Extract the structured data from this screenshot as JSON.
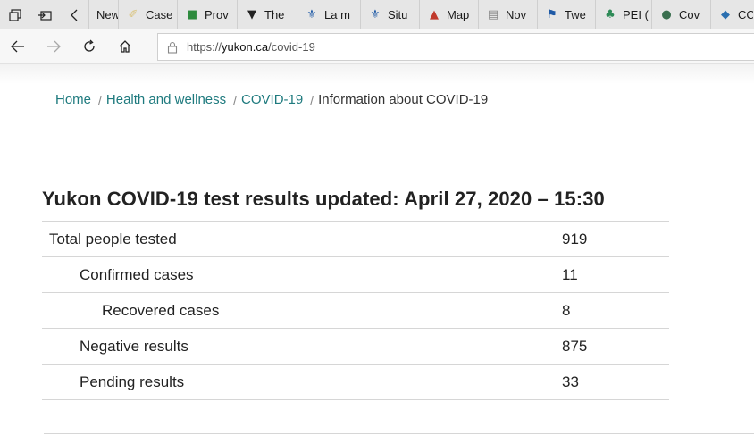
{
  "browser": {
    "tabs": [
      {
        "title": "New",
        "icon": "blank-page-icon",
        "color": "#ffffff"
      },
      {
        "title": "Case",
        "icon": "document-icon",
        "color": "#d9c27a"
      },
      {
        "title": "Prov",
        "icon": "green-logo-icon",
        "color": "#2e8b3e"
      },
      {
        "title": "The",
        "icon": "shield-icon",
        "color": "#222222"
      },
      {
        "title": "La m",
        "icon": "fleur-de-lis-icon",
        "color": "#1f5aa6"
      },
      {
        "title": "Situ",
        "icon": "fleur-de-lis-icon",
        "color": "#1f5aa6"
      },
      {
        "title": "Map",
        "icon": "sail-icon",
        "color": "#c0392b"
      },
      {
        "title": "Nov",
        "icon": "newspaper-icon",
        "color": "#888888"
      },
      {
        "title": "Twe",
        "icon": "flag-icon",
        "color": "#1f5aa6"
      },
      {
        "title": "PEI (",
        "icon": "trees-icon",
        "color": "#2e8b57"
      },
      {
        "title": "Cov",
        "icon": "globe-icon",
        "color": "#3a6f4f"
      },
      {
        "title": "CC",
        "icon": "crest-icon",
        "color": "#2a6fb0"
      }
    ],
    "url_prefix": "https://",
    "url_host": "yukon.ca",
    "url_path": "/covid-19"
  },
  "breadcrumb": {
    "items": [
      "Home",
      "Health and wellness",
      "COVID-19"
    ],
    "current": "Information about COVID-19"
  },
  "heading": "Yukon COVID-19 test results updated: April 27, 2020 – 15:30",
  "results": [
    {
      "label": "Total people tested",
      "value": "919",
      "level": 0
    },
    {
      "label": "Confirmed cases",
      "value": "11",
      "level": 1
    },
    {
      "label": "Recovered cases",
      "value": "8",
      "level": 2
    },
    {
      "label": "Negative results",
      "value": "875",
      "level": 1
    },
    {
      "label": "Pending results",
      "value": "33",
      "level": 1
    }
  ]
}
